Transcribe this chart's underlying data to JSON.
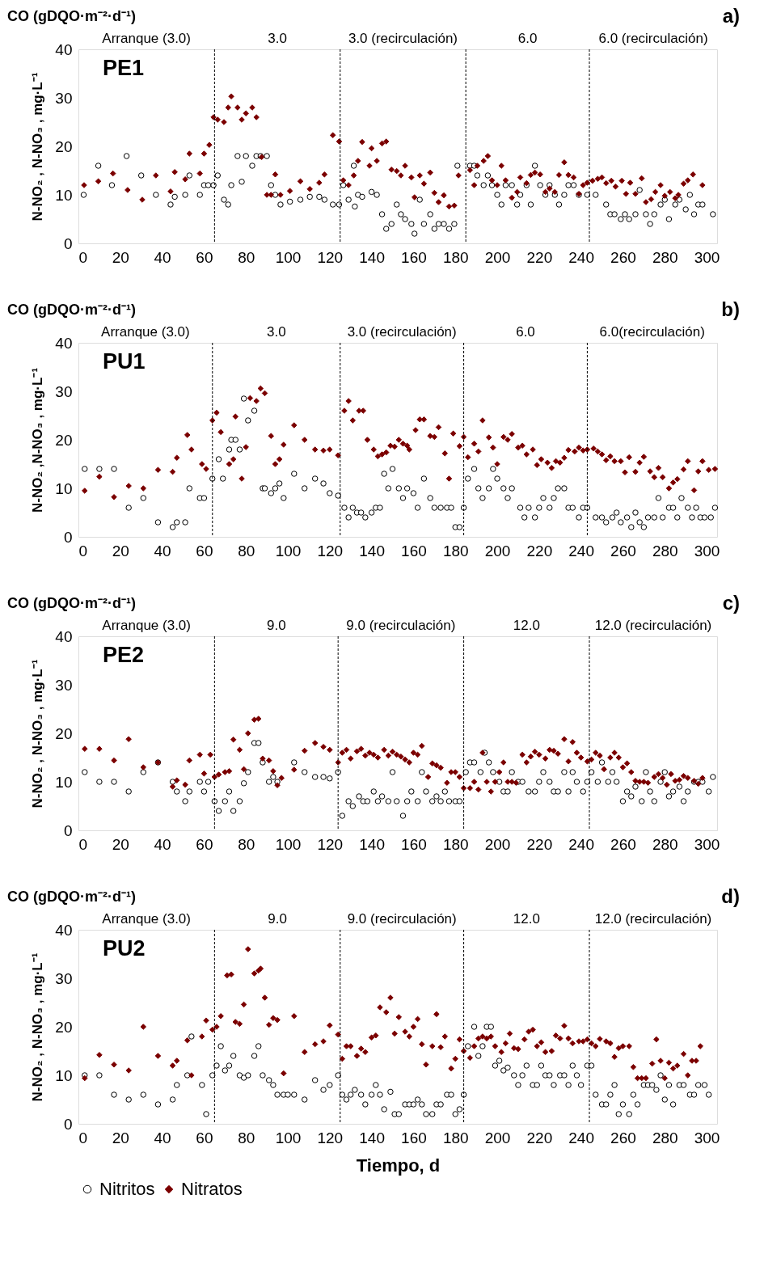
{
  "chart_data": [
    {
      "type": "scatter",
      "title": "CO (gDQO·m⁻²·d⁻¹)",
      "ylabel": "N-NO₂ , N-NO₃ , mg·L⁻¹",
      "annotations": [
        "a)",
        "PE1",
        "Arranque  (3.0)",
        "3.0",
        "3.0 (recirculación)",
        "6.0",
        "6.0 (recirculación)"
      ],
      "xlim": [
        0,
        305
      ],
      "ylim": [
        0,
        40
      ],
      "xticks": [
        0,
        20,
        40,
        60,
        80,
        100,
        120,
        140,
        160,
        180,
        200,
        220,
        240,
        260,
        280,
        300
      ],
      "yticks": [
        0,
        10,
        20,
        30,
        40
      ],
      "grid": false,
      "legend": false,
      "ref_lines": [
        {
          "axis": "x",
          "value": 65,
          "line_style": "dashed"
        },
        {
          "axis": "x",
          "value": 125,
          "line_style": "dashed"
        },
        {
          "axis": "x",
          "value": 185,
          "line_style": "dashed"
        },
        {
          "axis": "x",
          "value": 244,
          "line_style": "dashed"
        }
      ],
      "series": [
        {
          "color": "#000000",
          "marker": "circle",
          "x": [
            2.5,
            9.5,
            16,
            23,
            30,
            37,
            44,
            46,
            51,
            53,
            58,
            60,
            62,
            64.5,
            66.5,
            69.5,
            71.5,
            73,
            76,
            78,
            80,
            83,
            85,
            87,
            90,
            92,
            94,
            96.5,
            101,
            106,
            110.5,
            115,
            117.5,
            121.5,
            124.5,
            126.5,
            129,
            131.5,
            132,
            133.5,
            135.5,
            140,
            142.5,
            145,
            147,
            149.5,
            152,
            154,
            156,
            159,
            160.5,
            163,
            165,
            168,
            170,
            172,
            174.5,
            177,
            179.5,
            181,
            187,
            189,
            190.5,
            193.5,
            195.5,
            197.5,
            200,
            202,
            204,
            207,
            209.5,
            211,
            214,
            216,
            218,
            220.5,
            223,
            225,
            227.5,
            229.5,
            232,
            234,
            236.5,
            239,
            243,
            247,
            252,
            254,
            256,
            259,
            261,
            263,
            266,
            268,
            271,
            273,
            275,
            278,
            280,
            282,
            285,
            287,
            290,
            292,
            294,
            296,
            298,
            303
          ],
          "values": [
            10,
            16,
            12,
            18,
            14,
            10,
            8,
            9.6,
            10,
            14,
            10,
            12,
            12,
            12,
            14,
            9,
            8,
            12,
            18,
            12.7,
            18,
            16,
            18,
            18,
            18,
            12,
            10,
            8,
            8.6,
            9,
            9.6,
            9.6,
            9,
            8,
            8,
            12,
            9,
            16,
            7.6,
            10,
            9.6,
            10.6,
            10,
            6,
            3,
            4,
            8,
            6,
            5,
            4,
            2,
            9,
            4,
            6,
            3,
            4,
            4,
            3,
            4,
            16,
            16,
            16,
            14,
            12,
            14,
            12,
            10,
            8,
            12,
            12,
            8,
            10,
            12,
            8,
            16,
            12,
            10,
            12,
            10,
            8,
            10,
            12,
            12,
            10,
            10,
            10,
            8,
            6,
            6,
            5,
            6,
            5,
            6,
            11,
            6,
            4,
            6,
            8,
            9,
            5,
            8,
            9,
            7,
            10,
            6,
            8,
            8,
            6
          ]
        },
        {
          "color": "#7b0000",
          "marker": "diamond",
          "x": [
            2.7,
            9.5,
            16.5,
            23.5,
            30.5,
            37,
            44,
            46,
            51,
            53,
            58,
            60,
            62.5,
            64.5,
            66.5,
            69.5,
            71.5,
            73,
            76,
            78,
            80,
            83,
            85,
            87.5,
            90,
            92,
            94,
            96.5,
            101,
            106,
            110.5,
            115,
            117.5,
            121.5,
            124.5,
            126.5,
            129,
            131.5,
            133.5,
            135.5,
            139,
            140,
            142.5,
            145,
            147,
            149.5,
            152,
            154,
            156,
            159,
            160.5,
            163,
            165,
            168,
            170,
            172,
            174.5,
            177,
            179.5,
            181.5,
            187,
            189,
            190.5,
            193.5,
            195.5,
            197.5,
            200,
            202,
            204,
            207,
            209.5,
            211,
            214,
            216,
            218,
            220.5,
            223,
            225,
            227.5,
            229.5,
            232,
            234,
            236.5,
            239,
            241,
            243,
            245.5,
            248,
            250,
            252,
            254.5,
            256.5,
            259.5,
            261.5,
            263.5,
            266,
            269,
            271,
            273.5,
            275.5,
            278,
            280,
            282.5,
            285,
            286.5,
            289,
            291,
            293.5,
            298
          ],
          "values": [
            12,
            12.8,
            14.4,
            11,
            9,
            14,
            10.7,
            14.7,
            13.2,
            18.5,
            14.4,
            18.5,
            20.3,
            26,
            25.5,
            25,
            28,
            30.3,
            28,
            25.5,
            26.8,
            28,
            26,
            17.8,
            10,
            10,
            14.2,
            10,
            10.8,
            12.8,
            11.2,
            12.5,
            14.2,
            22.3,
            21,
            13,
            12,
            14,
            17,
            20.9,
            16,
            19.6,
            17,
            20.6,
            21,
            15.2,
            14.9,
            14,
            16,
            13.6,
            9.5,
            14,
            12.3,
            14.6,
            10.4,
            8.5,
            9.9,
            7.6,
            7.8,
            14,
            15.1,
            12,
            16,
            17,
            18,
            13,
            12,
            16,
            13,
            9.4,
            10.6,
            13.6,
            12.4,
            14.1,
            14.6,
            14.2,
            10.6,
            11.3,
            10.6,
            14.1,
            16.7,
            14.1,
            13.6,
            10.2,
            12,
            12.5,
            12.9,
            13.3,
            13.6,
            12.4,
            12.9,
            11.7,
            12.9,
            10.2,
            12.5,
            10.2,
            13.4,
            8.5,
            9.1,
            10.6,
            12,
            9.8,
            10.6,
            9.3,
            10,
            12.3,
            13,
            14.2,
            12
          ]
        }
      ]
    },
    {
      "type": "scatter",
      "title": "CO (gDQO·m⁻²·d⁻¹)",
      "ylabel": "N-NO₂ ,N-NO₃ , mg·L⁻¹",
      "annotations": [
        "b)",
        "PU1",
        "Arranque  (3.0)",
        "3.0",
        "3.0 (recirculación)",
        "6.0",
        "6.0(recirculación)"
      ],
      "xlim": [
        0,
        305
      ],
      "ylim": [
        0,
        40
      ],
      "xticks": [
        0,
        20,
        40,
        60,
        80,
        100,
        120,
        140,
        160,
        180,
        200,
        220,
        240,
        260,
        280,
        300
      ],
      "yticks": [
        0,
        10,
        20,
        30,
        40
      ],
      "grid": false,
      "legend": false,
      "ref_lines": [
        {
          "axis": "x",
          "value": 64,
          "line_style": "dashed"
        },
        {
          "axis": "x",
          "value": 125,
          "line_style": "dashed"
        },
        {
          "axis": "x",
          "value": 184,
          "line_style": "dashed"
        },
        {
          "axis": "x",
          "value": 243,
          "line_style": "dashed"
        }
      ],
      "series": [
        {
          "color": "#000000",
          "marker": "circle",
          "x": [
            3,
            10,
            17,
            24,
            31,
            38,
            45,
            47,
            51,
            53,
            58,
            60,
            64,
            67,
            69,
            72,
            73,
            75,
            77,
            79,
            81,
            84,
            88,
            89,
            92,
            94,
            96,
            98,
            103,
            108,
            113,
            117,
            120,
            124,
            127,
            129,
            131,
            133,
            135,
            137,
            140,
            142,
            144,
            146,
            148,
            150,
            153,
            155,
            157,
            160,
            162,
            165,
            168,
            170,
            173,
            176,
            178,
            180,
            182,
            184,
            186,
            189,
            191,
            193,
            196,
            198,
            200,
            203,
            205,
            207,
            211,
            213,
            215,
            218,
            220,
            222,
            225,
            227,
            229,
            232,
            234,
            236,
            239,
            241,
            243,
            247,
            250,
            252,
            255,
            257,
            259,
            262,
            264,
            266,
            268,
            270,
            272,
            275,
            277,
            279,
            282,
            284,
            286,
            288,
            291,
            293,
            295,
            297,
            299,
            302,
            304
          ],
          "values": [
            14,
            14,
            14,
            6,
            8,
            3,
            2,
            3,
            3,
            10,
            8,
            8,
            12,
            16,
            12,
            18,
            20,
            20,
            18,
            28.5,
            24,
            26,
            10,
            10,
            9,
            10,
            11,
            8,
            13,
            10,
            12,
            11,
            9,
            8.5,
            6,
            4,
            6,
            5,
            5,
            4,
            5,
            6,
            6,
            13,
            10,
            14,
            10,
            8,
            10,
            9,
            6,
            12,
            8,
            6,
            6,
            6,
            6,
            2,
            2,
            6,
            12,
            14,
            10,
            8,
            10,
            14,
            12,
            10,
            8,
            10,
            6,
            4,
            6,
            4,
            6,
            8,
            6,
            8,
            10,
            10,
            6,
            6,
            4,
            6,
            6,
            4,
            4,
            3,
            4,
            5,
            3,
            4,
            2,
            5,
            3,
            2,
            4,
            4,
            8,
            4,
            6,
            6,
            4,
            8,
            6,
            4,
            6,
            4,
            4,
            4,
            6
          ]
        },
        {
          "color": "#7b0000",
          "marker": "diamond",
          "x": [
            3,
            10,
            17,
            24,
            31,
            38,
            45,
            47,
            52,
            54,
            59,
            61,
            64,
            66,
            68,
            72,
            74,
            75,
            78,
            80,
            82,
            85,
            87,
            89,
            92,
            94,
            96,
            98,
            103,
            108,
            113,
            117,
            120,
            124,
            127,
            129,
            131,
            134,
            136,
            138,
            141,
            143,
            145,
            147,
            149,
            151,
            153,
            155,
            157,
            158,
            161,
            163,
            165,
            168,
            170,
            172,
            175,
            177,
            179,
            182,
            184,
            186,
            189,
            191,
            193,
            196,
            198,
            200,
            203,
            205,
            207,
            210,
            212,
            214,
            217,
            219,
            221,
            224,
            226,
            228,
            230,
            232,
            234,
            237,
            239,
            241,
            243,
            246,
            248,
            250,
            252,
            254,
            256,
            259,
            261,
            263,
            266,
            268,
            270,
            273,
            275,
            277,
            279,
            282,
            284,
            286,
            289,
            291,
            294,
            296,
            298,
            301,
            304
          ],
          "values": [
            9.5,
            12.4,
            8.2,
            10.5,
            10,
            13.8,
            13.4,
            16.3,
            21,
            18,
            15,
            14,
            24,
            25.6,
            21.6,
            15,
            16,
            24.8,
            12,
            18.5,
            28.6,
            28,
            30.6,
            29.6,
            20.8,
            15,
            16,
            19,
            23,
            20,
            18,
            17.8,
            18,
            16.8,
            26,
            28,
            24,
            26,
            26,
            20,
            18,
            16.6,
            17,
            17.4,
            18.8,
            18.6,
            20,
            19.2,
            18.8,
            18,
            22,
            24.2,
            24.2,
            20.8,
            20.6,
            22.6,
            17.2,
            12,
            21.3,
            18.7,
            20.6,
            16.4,
            19.2,
            17.6,
            24,
            20.5,
            18.4,
            15,
            20.6,
            20,
            21.2,
            18.4,
            18.8,
            17,
            18,
            14.8,
            16,
            15.3,
            14.2,
            15.6,
            15.3,
            16.3,
            17.9,
            17.6,
            18.4,
            17.8,
            18,
            18.2,
            17.6,
            17,
            15.8,
            16.6,
            15.6,
            15.6,
            13.3,
            16.4,
            13.4,
            15.3,
            16.5,
            13.5,
            12.3,
            14.2,
            12.3,
            10,
            11.2,
            11.9,
            13.9,
            15.6,
            9.6,
            13.5,
            15.6,
            13.8,
            14
          ]
        }
      ]
    },
    {
      "type": "scatter",
      "title": "CO (gDQO·m⁻²·d⁻¹)",
      "ylabel": "N-NO₂ , N-NO₃ , mg·L⁻¹",
      "annotations": [
        "c)",
        "PE2",
        "Arranque  (3.0)",
        "9.0",
        "9.0 (recirculación)",
        "12.0",
        "12.0 (recirculación)"
      ],
      "xlim": [
        0,
        305
      ],
      "ylim": [
        0,
        40
      ],
      "xticks": [
        0,
        20,
        40,
        60,
        80,
        100,
        120,
        140,
        160,
        180,
        200,
        220,
        240,
        260,
        280,
        300
      ],
      "yticks": [
        0,
        10,
        20,
        30,
        40
      ],
      "grid": false,
      "legend": false,
      "ref_lines": [
        {
          "axis": "x",
          "value": 65,
          "line_style": "dashed"
        },
        {
          "axis": "x",
          "value": 124,
          "line_style": "dashed"
        },
        {
          "axis": "x",
          "value": 184,
          "line_style": "dashed"
        },
        {
          "axis": "x",
          "value": 244,
          "line_style": "dashed"
        }
      ],
      "series": [
        {
          "color": "#000000",
          "marker": "circle",
          "x": [
            3,
            10,
            17,
            24,
            31,
            38,
            45,
            47,
            51,
            53,
            58,
            60,
            62,
            65,
            67,
            70,
            72,
            74,
            77,
            79,
            81,
            84,
            86,
            88,
            91,
            93,
            95,
            103,
            108,
            113,
            117,
            120,
            124,
            126,
            129,
            131,
            134,
            136,
            138,
            141,
            143,
            145,
            148,
            150,
            152,
            155,
            157,
            159,
            162,
            164,
            166,
            169,
            171,
            173,
            175,
            177,
            180,
            182,
            185,
            187,
            189,
            192,
            194,
            196,
            198,
            201,
            203,
            205,
            207,
            210,
            212,
            215,
            218,
            220,
            222,
            225,
            227,
            229,
            232,
            234,
            236,
            238,
            241,
            243,
            245,
            248,
            250,
            253,
            255,
            257,
            260,
            262,
            264,
            266,
            269,
            271,
            273,
            275,
            278,
            280,
            282,
            284,
            287,
            289,
            291,
            294,
            296,
            298,
            301,
            303
          ],
          "values": [
            12,
            10,
            10,
            8,
            12,
            14,
            10,
            8,
            6,
            8,
            10,
            8,
            10,
            6,
            4,
            6,
            8,
            4,
            6,
            9.7,
            12,
            18,
            18,
            14,
            10,
            11,
            10,
            14,
            12,
            11,
            11,
            10.7,
            12,
            3,
            6,
            5,
            7,
            6,
            6,
            8,
            6,
            7,
            6,
            12,
            6,
            3,
            6,
            8,
            6,
            12,
            8,
            6,
            7,
            6,
            8,
            6,
            6,
            6,
            12,
            14,
            14,
            12,
            16,
            14,
            12,
            10,
            8,
            8,
            12,
            10,
            10,
            8,
            8,
            10,
            12,
            10,
            8,
            8,
            12,
            8,
            12,
            10,
            8,
            10,
            12,
            10,
            14,
            10,
            12,
            10,
            6,
            8,
            7,
            9,
            6,
            12,
            8,
            6,
            10,
            12,
            7,
            8,
            9,
            6,
            8,
            10,
            10,
            10,
            8,
            11
          ]
        },
        {
          "color": "#7b0000",
          "marker": "diamond",
          "x": [
            3,
            10,
            17,
            24,
            31,
            38,
            45,
            47,
            51,
            53,
            58,
            60,
            63,
            65,
            67,
            70,
            72,
            74,
            77,
            79,
            81,
            84,
            86,
            88,
            91,
            93,
            95,
            97,
            103,
            108,
            113,
            117,
            120,
            124,
            126,
            128,
            130,
            133,
            135,
            137,
            139,
            141,
            143,
            146,
            148,
            150,
            152,
            154,
            156,
            158,
            160,
            162,
            164,
            167,
            169,
            171,
            173,
            176,
            178,
            180,
            182,
            184,
            187,
            189,
            191,
            193,
            195,
            197,
            199,
            201,
            203,
            205,
            207,
            209,
            212,
            214,
            216,
            218,
            220,
            223,
            225,
            227,
            229,
            232,
            234,
            236,
            238,
            240,
            243,
            245,
            247,
            249,
            251,
            254,
            256,
            258,
            260,
            262,
            264,
            266,
            268,
            270,
            272,
            275,
            277,
            279,
            281,
            283,
            285,
            287,
            289,
            291,
            294,
            296,
            298
          ],
          "values": [
            16.8,
            16.8,
            14.4,
            18.8,
            13,
            14,
            9,
            10.3,
            9.4,
            14.4,
            15.6,
            11.7,
            15.6,
            11,
            11.5,
            12,
            12.2,
            18.7,
            16.6,
            12.6,
            20,
            22.8,
            23,
            14.8,
            14.4,
            12.2,
            9.3,
            10.8,
            12.5,
            16.4,
            18,
            17.2,
            16.6,
            14,
            16,
            16.6,
            14.8,
            16.3,
            16.8,
            15.4,
            16,
            15.6,
            15,
            16.6,
            15.4,
            16.2,
            15.6,
            15.2,
            14.6,
            14,
            16,
            15.6,
            17.4,
            11,
            13.8,
            13.4,
            12.9,
            9.8,
            12,
            12,
            11,
            8.7,
            8.7,
            10,
            8.4,
            16,
            10,
            8,
            10,
            12,
            14,
            10,
            10,
            9.8,
            15.6,
            14,
            15.2,
            16.2,
            15.6,
            14.8,
            16.6,
            16.4,
            15.8,
            18.8,
            14.2,
            18.2,
            16,
            15,
            14.2,
            14.6,
            16,
            15.4,
            12.6,
            15,
            16,
            15,
            13,
            13.8,
            12,
            10.2,
            10,
            10,
            9.8,
            11,
            11.6,
            10.8,
            9.4,
            11.6,
            10.2,
            10.4,
            11.2,
            10.8,
            10.2,
            9.6,
            10.8
          ]
        }
      ]
    },
    {
      "type": "scatter",
      "title": "CO (gDQO·m⁻²·d⁻¹)",
      "xlabel": "Tiempo, d",
      "ylabel": "N-NO₂ , N-NO₃ , mg·L⁻¹",
      "annotations": [
        "d)",
        "PU2",
        "Arranque  (3.0)",
        "9.0",
        "9.0 (recirculación)",
        "12.0",
        "12.0 (recirculación)"
      ],
      "xlim": [
        0,
        305
      ],
      "ylim": [
        0,
        40
      ],
      "xticks": [
        0,
        20,
        40,
        60,
        80,
        100,
        120,
        140,
        160,
        180,
        200,
        220,
        240,
        260,
        280,
        300
      ],
      "yticks": [
        0,
        10,
        20,
        30,
        40
      ],
      "grid": false,
      "legend": "bottom",
      "ref_lines": [
        {
          "axis": "x",
          "value": 65,
          "line_style": "dashed"
        },
        {
          "axis": "x",
          "value": 125,
          "line_style": "dashed"
        },
        {
          "axis": "x",
          "value": 184,
          "line_style": "dashed"
        },
        {
          "axis": "x",
          "value": 244,
          "line_style": "dashed"
        }
      ],
      "series": [
        {
          "name": "Nitritos",
          "color": "#000000",
          "marker": "circle",
          "x": [
            3,
            10,
            17,
            24,
            31,
            38,
            45,
            47,
            52,
            54,
            59,
            61,
            64,
            66,
            68,
            70,
            72,
            74,
            77,
            79,
            81,
            84,
            86,
            88,
            91,
            93,
            95,
            98,
            100,
            103,
            108,
            113,
            117,
            120,
            124,
            126,
            128,
            130,
            132,
            135,
            137,
            140,
            142,
            144,
            146,
            149,
            151,
            153,
            156,
            158,
            160,
            162,
            164,
            166,
            169,
            171,
            173,
            176,
            178,
            180,
            182,
            184,
            186,
            189,
            191,
            193,
            195,
            197,
            199,
            201,
            203,
            205,
            208,
            210,
            212,
            214,
            217,
            219,
            221,
            223,
            225,
            227,
            230,
            232,
            234,
            236,
            238,
            240,
            243,
            245,
            247,
            250,
            252,
            254,
            256,
            258,
            260,
            263,
            265,
            267,
            270,
            272,
            274,
            276,
            278,
            280,
            282,
            284,
            287,
            289,
            292,
            294,
            296,
            299,
            301
          ],
          "values": [
            10,
            10,
            6,
            5,
            6,
            4,
            5,
            8,
            10,
            18,
            8,
            2,
            10,
            12,
            16,
            11,
            12,
            14,
            10,
            9.5,
            10,
            14,
            16,
            10,
            9,
            8,
            6,
            6,
            6,
            6,
            5,
            9,
            7,
            8,
            10,
            6,
            5,
            6,
            7,
            6,
            4,
            6,
            8,
            6,
            3,
            6.6,
            2,
            2,
            4,
            4,
            4,
            5,
            4,
            2,
            2,
            4,
            4,
            6,
            6,
            2,
            3,
            6,
            16,
            20,
            14,
            16,
            20,
            20,
            12,
            13,
            11,
            11.6,
            10,
            8,
            10,
            12,
            8,
            8,
            12,
            10,
            10,
            8,
            10,
            10,
            8,
            12,
            10,
            8,
            12,
            12,
            6,
            4,
            4,
            6,
            8,
            2,
            4,
            2,
            6,
            4,
            8,
            8,
            8,
            7,
            10,
            5,
            8,
            4,
            8,
            8,
            6,
            6,
            8,
            8,
            6
          ]
        },
        {
          "name": "Nitratos",
          "color": "#7b0000",
          "marker": "diamond",
          "x": [
            3,
            10,
            17,
            24,
            31,
            38,
            45,
            47,
            52,
            54,
            59,
            61,
            64,
            66,
            68,
            71,
            73,
            75,
            77,
            79,
            81,
            84,
            86,
            87,
            89,
            91,
            93,
            95,
            98,
            103,
            108,
            113,
            117,
            120,
            124,
            126,
            128,
            130,
            133,
            135,
            137,
            140,
            142,
            144,
            147,
            149,
            151,
            153,
            156,
            158,
            160,
            162,
            164,
            166,
            169,
            171,
            173,
            175,
            178,
            180,
            182,
            184,
            187,
            189,
            191,
            193,
            195,
            197,
            199,
            202,
            204,
            206,
            208,
            210,
            213,
            215,
            217,
            219,
            221,
            223,
            226,
            228,
            230,
            232,
            234,
            236,
            239,
            241,
            243,
            245,
            247,
            249,
            252,
            254,
            256,
            258,
            260,
            263,
            265,
            267,
            269,
            271,
            274,
            276,
            278,
            280,
            282,
            284,
            286,
            289,
            291,
            293,
            295,
            297
          ],
          "values": [
            9.4,
            14.2,
            12.2,
            11,
            20,
            14,
            12,
            13,
            17.2,
            10,
            18,
            21.3,
            19.4,
            20,
            22.2,
            30.6,
            30.8,
            21,
            20.6,
            24.6,
            36,
            31,
            31.6,
            32,
            26,
            20.4,
            21.8,
            21.4,
            10.4,
            22.2,
            14.8,
            16.4,
            17,
            20.3,
            18.4,
            13.4,
            16,
            16,
            14,
            15.5,
            14.8,
            17.8,
            18.2,
            24,
            23,
            26,
            18.6,
            22,
            19,
            18,
            20,
            21.6,
            16.4,
            12.2,
            16,
            22.6,
            15.8,
            18,
            11.4,
            13.4,
            17.4,
            15,
            13.6,
            16,
            17.6,
            18,
            17.6,
            18,
            16,
            14.8,
            16.6,
            18.6,
            15.6,
            15.4,
            17.4,
            19,
            19.4,
            16,
            16.8,
            14.8,
            15,
            18.2,
            17.6,
            20.2,
            17.6,
            16.6,
            17,
            17,
            17.4,
            16.6,
            16,
            17.5,
            17,
            16.6,
            13.8,
            15.6,
            16,
            16,
            11.7,
            9.4,
            9.4,
            9.4,
            12.4,
            17.4,
            13,
            9.4,
            12.6,
            11.4,
            12,
            14.4,
            10,
            13,
            13,
            16
          ]
        }
      ]
    }
  ]
}
